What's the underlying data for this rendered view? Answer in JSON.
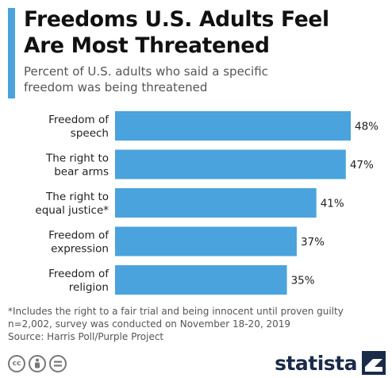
{
  "title_lines": [
    "Freedoms U.S. Adults Feel",
    "Are Most Threatened"
  ],
  "subtitle_lines": [
    "Percent of U.S. adults who said a specific",
    "freedom was being threatened"
  ],
  "colors": {
    "bar": "#4aa3dc",
    "accent": "#4aa3dc",
    "brand": "#1a2b4a"
  },
  "chart_data": {
    "type": "bar",
    "orientation": "horizontal",
    "categories": [
      [
        "Freedom of",
        "speech"
      ],
      [
        "The right to",
        "bear arms"
      ],
      [
        "The right to",
        "equal justice*"
      ],
      [
        "Freedom of",
        "expression"
      ],
      [
        "Freedom of",
        "religion"
      ]
    ],
    "values": [
      48,
      47,
      41,
      37,
      35
    ],
    "value_labels": [
      "48%",
      "47%",
      "41%",
      "37%",
      "35%"
    ],
    "xlim": [
      0,
      48
    ],
    "grid": false,
    "legend": "none"
  },
  "footnotes": [
    "*Includes the right to a fair trial and being innocent until proven guilty",
    "n=2,002, survey was conducted on November 18-20, 2019",
    "Source: Harris Poll/Purple Project"
  ],
  "license_icons": [
    {
      "name": "creative-commons-icon",
      "glyph": "cc"
    },
    {
      "name": "attribution-icon",
      "glyph": "i"
    },
    {
      "name": "no-derivatives-icon",
      "glyph": "="
    }
  ],
  "brand": {
    "name": "statista"
  }
}
